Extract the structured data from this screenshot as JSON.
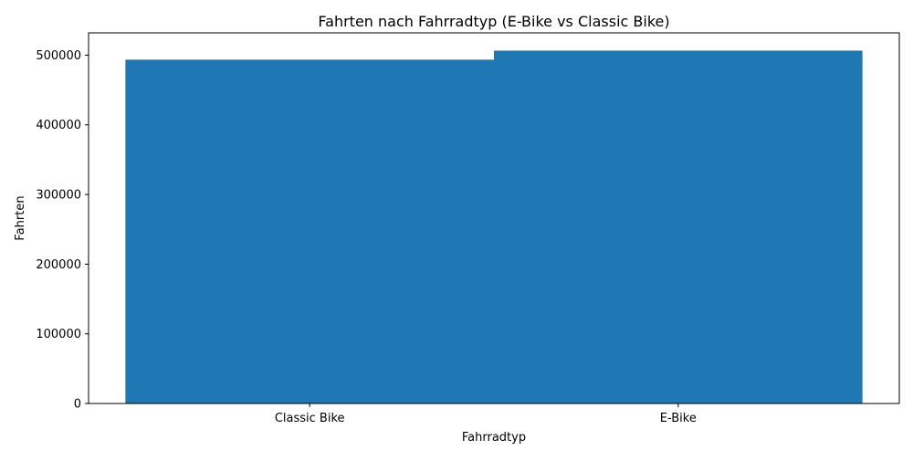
{
  "chart_data": {
    "type": "bar",
    "title": "Fahrten nach Fahrradtyp (E-Bike vs Classic Bike)",
    "xlabel": "Fahrradtyp",
    "ylabel": "Fahrten",
    "categories": [
      "Classic Bike",
      "E-Bike"
    ],
    "values": [
      493500,
      506500
    ],
    "ylim": [
      0,
      532000
    ],
    "yticks": [
      0,
      100000,
      200000,
      300000,
      400000,
      500000
    ],
    "ytick_labels": [
      "0",
      "100000",
      "200000",
      "300000",
      "400000",
      "500000"
    ],
    "bar_color": "#1f77b4",
    "grid": false,
    "legend": "none"
  }
}
